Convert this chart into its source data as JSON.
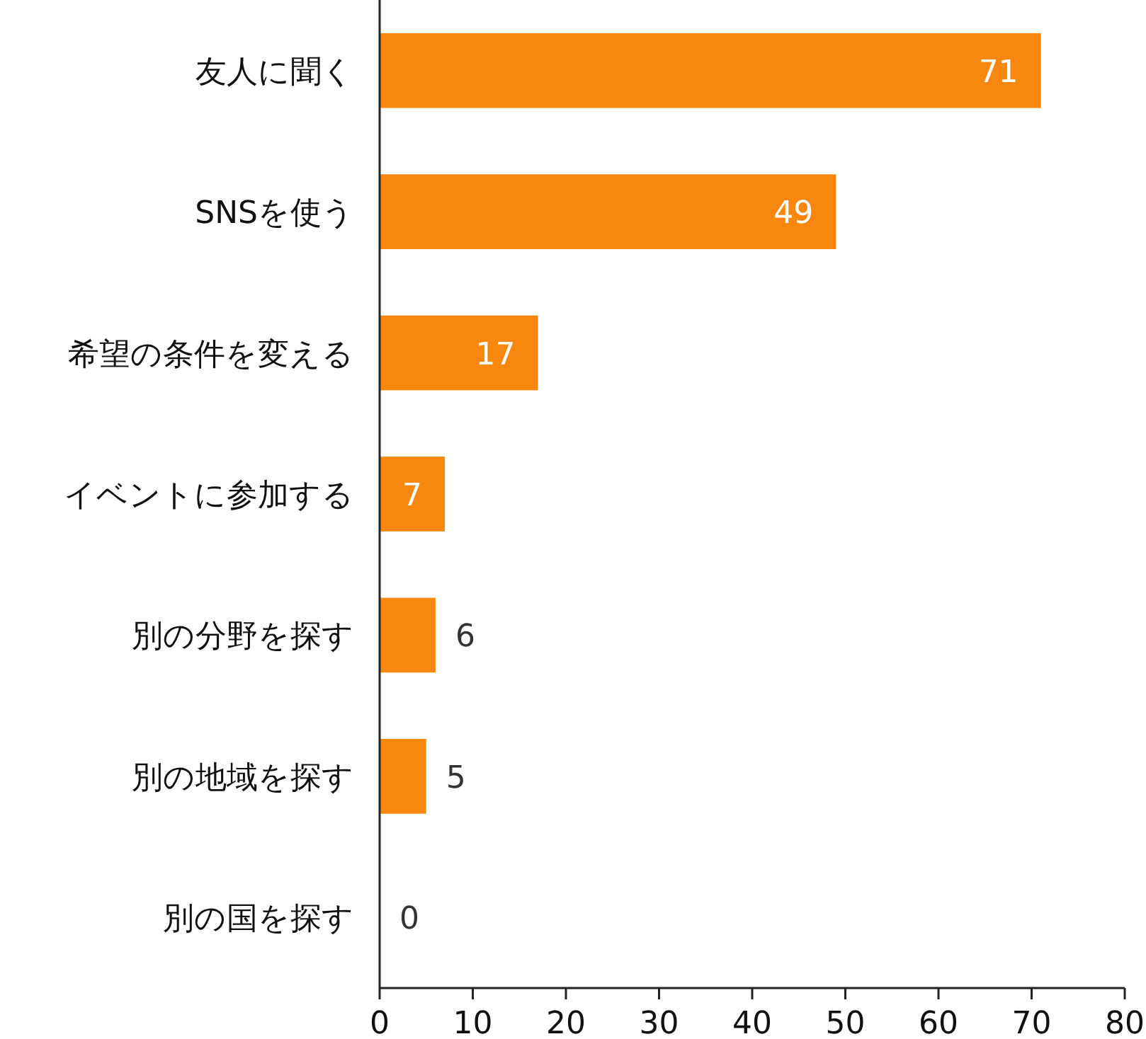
{
  "chart_data": {
    "type": "bar",
    "orientation": "horizontal",
    "categories": [
      "友人に聞く",
      "SNSを使う",
      "希望の条件を変える",
      "イベントに参加する",
      "別の分野を探す",
      "別の地域を探す",
      "別の国を探す"
    ],
    "values": [
      71,
      49,
      17,
      7,
      6,
      5,
      0
    ],
    "color": "#f7870f",
    "xlim": [
      0,
      80
    ],
    "xticks": [
      0,
      10,
      20,
      30,
      40,
      50,
      60,
      70,
      80
    ],
    "data_labels": true
  }
}
